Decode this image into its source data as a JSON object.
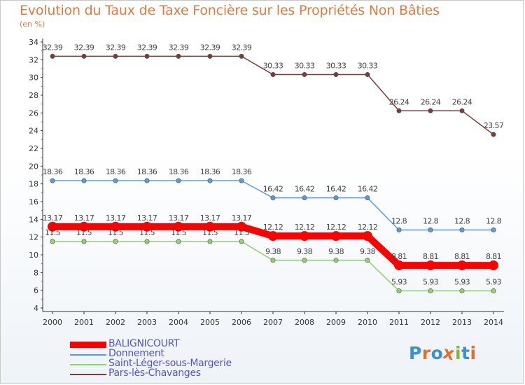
{
  "title": "Evolution du Taux de Taxe Foncière sur les Propriétés Non Bâties",
  "subtitle": "(en %)",
  "logo": {
    "text": "Proxiti",
    "colors": [
      "#3a8fd6",
      "#e0702e",
      "#3a8fd6",
      "#e0702e",
      "#7ab83b",
      "#3a8fd6",
      "#e0702e"
    ]
  },
  "chart_data": {
    "type": "line",
    "x": [
      "2000",
      "2001",
      "2002",
      "2003",
      "2004",
      "2005",
      "2006",
      "2007",
      "2008",
      "2009",
      "2010",
      "2011",
      "2012",
      "2013",
      "2014"
    ],
    "ylim": [
      4,
      34
    ],
    "yticks": [
      "4",
      "6",
      "8",
      "10",
      "12",
      "14",
      "16",
      "18",
      "20",
      "22",
      "24",
      "26",
      "28",
      "30",
      "32",
      "34"
    ],
    "grid": false,
    "legend_position": "bottom-left",
    "series": [
      {
        "name": "BALIGNICOURT",
        "color": "#ff0000",
        "bold": true,
        "values": [
          13.17,
          13.17,
          13.17,
          13.17,
          13.17,
          13.17,
          13.17,
          12.12,
          12.12,
          12.12,
          12.12,
          8.81,
          8.81,
          8.81,
          8.81
        ],
        "labels": [
          "13.17",
          "13.17",
          "13.17",
          "13.17",
          "13.17",
          "13.17",
          "13.17",
          "12.12",
          "12.12",
          "12.12",
          "12.12",
          "8.81",
          "8.81",
          "8.81",
          "8.81"
        ]
      },
      {
        "name": "Donnement",
        "color": "#5b9bd5",
        "bold": false,
        "values": [
          18.36,
          18.36,
          18.36,
          18.36,
          18.36,
          18.36,
          18.36,
          16.42,
          16.42,
          16.42,
          16.42,
          12.8,
          12.8,
          12.8,
          12.8
        ],
        "labels": [
          "18.36",
          "18.36",
          "18.36",
          "18.36",
          "18.36",
          "18.36",
          "18.36",
          "16.42",
          "16.42",
          "16.42",
          "16.42",
          "12.8",
          "12.8",
          "12.8",
          "12.8"
        ]
      },
      {
        "name": "Saint-Léger-sous-Margerie",
        "color": "#8fd16a",
        "bold": false,
        "values": [
          11.5,
          11.5,
          11.5,
          11.5,
          11.5,
          11.5,
          11.5,
          9.38,
          9.38,
          9.38,
          9.38,
          5.93,
          5.93,
          5.93,
          5.93
        ],
        "labels": [
          "11.5",
          "11.5",
          "11.5",
          "11.5",
          "11.5",
          "11.5",
          "11.5",
          "9.38",
          "9.38",
          "9.38",
          "9.38",
          "5.93",
          "5.93",
          "5.93",
          "5.93"
        ]
      },
      {
        "name": "Pars-lès-Chavanges",
        "color": "#7a3b3b",
        "bold": false,
        "values": [
          32.39,
          32.39,
          32.39,
          32.39,
          32.39,
          32.39,
          32.39,
          30.33,
          30.33,
          30.33,
          30.33,
          26.24,
          26.24,
          26.24,
          23.57
        ],
        "labels": [
          "32.39",
          "32.39",
          "32.39",
          "32.39",
          "32.39",
          "32.39",
          "32.39",
          "30.33",
          "30.33",
          "30.33",
          "30.33",
          "26.24",
          "26.24",
          "26.24",
          "23.57"
        ]
      }
    ]
  }
}
